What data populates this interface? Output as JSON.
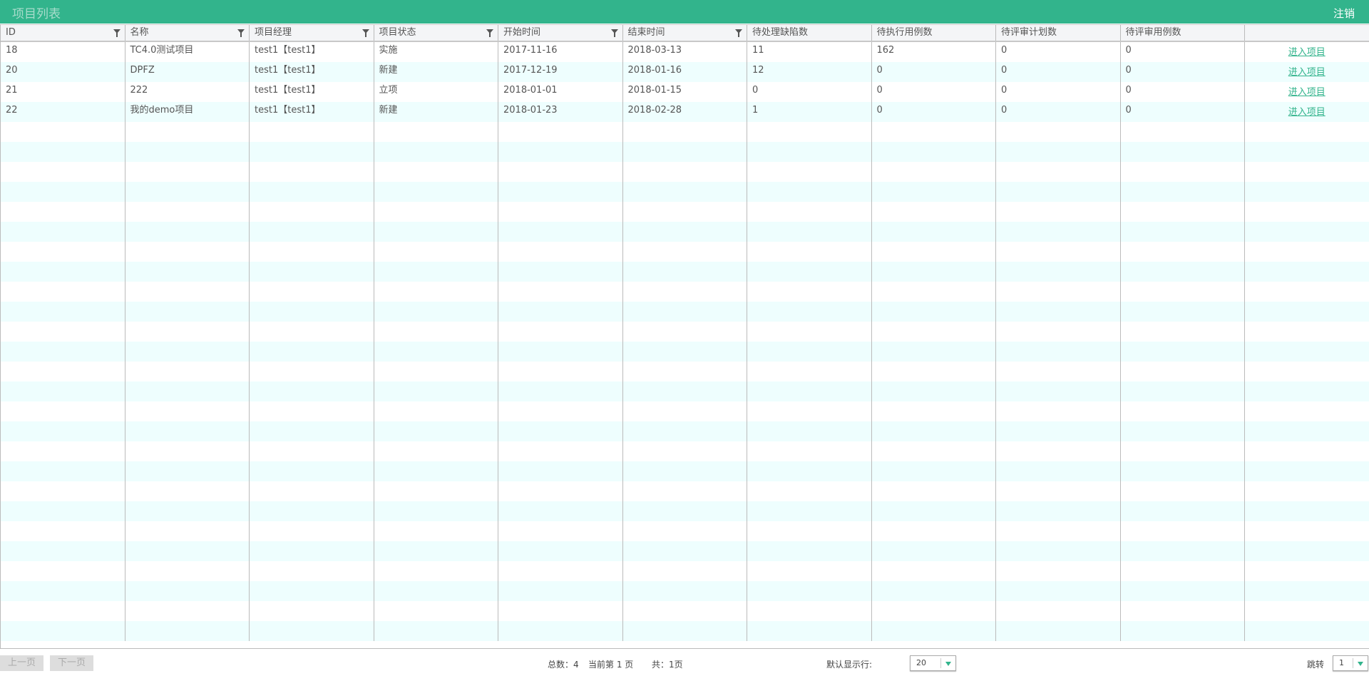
{
  "header": {
    "title": "项目列表",
    "logout": "注销"
  },
  "columns": [
    {
      "label": "ID",
      "filter": true
    },
    {
      "label": "名称",
      "filter": true
    },
    {
      "label": "项目经理",
      "filter": true
    },
    {
      "label": "项目状态",
      "filter": true
    },
    {
      "label": "开始时间",
      "filter": true
    },
    {
      "label": "结束时间",
      "filter": true
    },
    {
      "label": "待处理缺陷数",
      "filter": false
    },
    {
      "label": "待执行用例数",
      "filter": false
    },
    {
      "label": "待评审计划数",
      "filter": false
    },
    {
      "label": "待评审用例数",
      "filter": false
    },
    {
      "label": "",
      "filter": false
    }
  ],
  "rows": [
    [
      "18",
      "TC4.0测试项目",
      "test1【test1】",
      "实施",
      "2017-11-16",
      "2018-03-13",
      "11",
      "162",
      "0",
      "0"
    ],
    [
      "20",
      "DPFZ",
      "test1【test1】",
      "新建",
      "2017-12-19",
      "2018-01-16",
      "12",
      "0",
      "0",
      "0"
    ],
    [
      "21",
      "222",
      "test1【test1】",
      "立项",
      "2018-01-01",
      "2018-01-15",
      "0",
      "0",
      "0",
      "0"
    ],
    [
      "22",
      "我的demo项目",
      "test1【test1】",
      "新建",
      "2018-01-23",
      "2018-02-28",
      "1",
      "0",
      "0",
      "0"
    ]
  ],
  "action_label": "进入项目",
  "footer": {
    "prev": "上一页",
    "next": "下一页",
    "total": "总数：4",
    "current": "当前第 1 页",
    "pages": "共：1页",
    "rows_label": "默认显示行:",
    "rows_value": "20",
    "jump_label": "跳转",
    "jump_value": "1"
  },
  "colors": {
    "accent": "#32b48c",
    "stripe": "#eefefe"
  }
}
